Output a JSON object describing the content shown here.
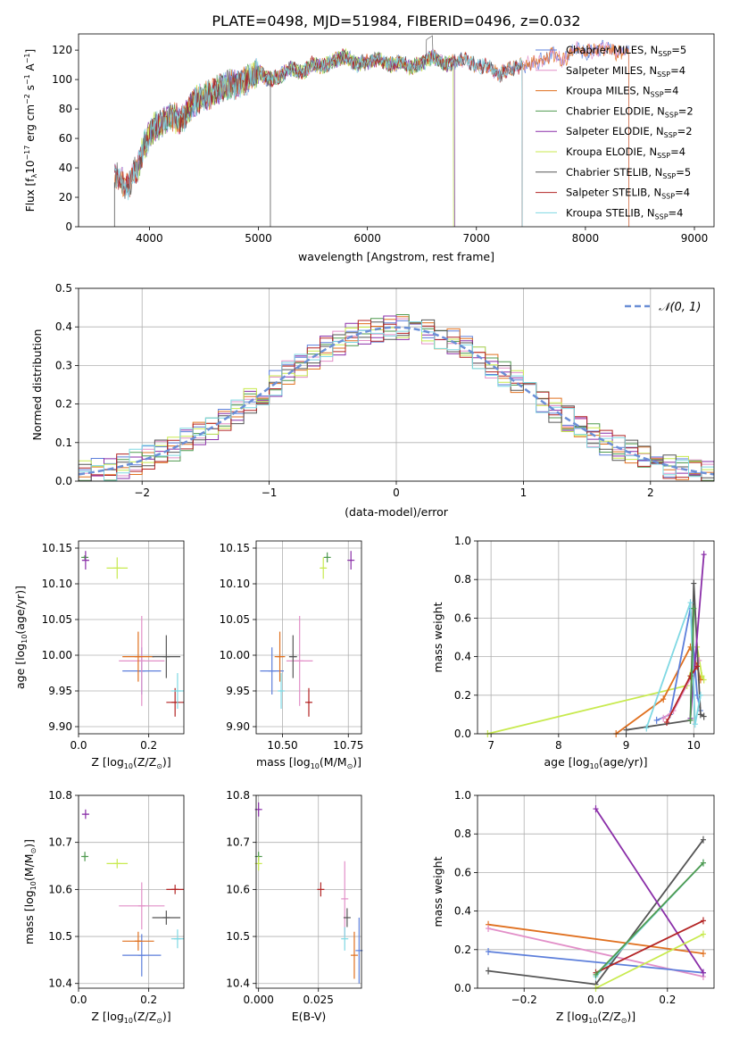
{
  "figure_title": "PLATE=0498, MJD=51984, FIBERID=0496, z=0.032",
  "colors": {
    "MILES": "#5d7fdb",
    "S_MILES": "#e28fc8",
    "K_MILES": "#e0701f",
    "C_ELODIE": "#4f9a4f",
    "S_ELODIE": "#8a2ea8",
    "K_ELODIE": "#c8ea4f",
    "C_STELIB": "#555555",
    "S_STELIB": "#b32424",
    "K_STELIB": "#7fd8e3",
    "normal": "#6b8fd6"
  },
  "chart_data": [
    {
      "id": "spectrum",
      "type": "line",
      "xlabel": "wavelength [Angstrom, rest frame]",
      "ylabel": "Flux [f",
      "ylabel_sub": "λ",
      "ylabel_rest": "10",
      "ylabel_exp": "−17",
      "ylabel_units": " erg cm",
      "ylabel_units_exp": "−2",
      "ylabel_units2": " s",
      "ylabel_units2_exp": "−1",
      "ylabel_units3": " A",
      "ylabel_units3_exp": "−1",
      "ylabel_end": "]",
      "xlim": [
        3350,
        9180
      ],
      "ylim": [
        0,
        131
      ],
      "xticks": [
        4000,
        5000,
        6000,
        7000,
        8000,
        9000
      ],
      "yticks": [
        0,
        20,
        40,
        60,
        80,
        100,
        120
      ],
      "spectrum_anchor_x": [
        3670,
        3700,
        3800,
        3900,
        3950,
        4000,
        4050,
        4100,
        4200,
        4300,
        4400,
        4500,
        4600,
        4700,
        4800,
        4900,
        5000,
        5100,
        5200,
        5300,
        5400,
        5500,
        5600,
        5700,
        5800,
        5900,
        6000,
        6100,
        6200,
        6300,
        6400,
        6500,
        6600,
        6700,
        6800,
        6900,
        7000,
        7100,
        7200,
        7300,
        7400,
        7500,
        7600,
        7700,
        7800,
        7900,
        8000,
        8100,
        8200,
        8300,
        8400,
        8500,
        8600,
        8700,
        8800,
        8900,
        9000,
        9100
      ],
      "spectrum_anchor_y": [
        32,
        35,
        27,
        42,
        55,
        62,
        68,
        70,
        75,
        72,
        85,
        88,
        92,
        96,
        97,
        100,
        105,
        100,
        102,
        108,
        104,
        111,
        109,
        113,
        116,
        110,
        112,
        114,
        110,
        112,
        108,
        111,
        116,
        110,
        112,
        114,
        109,
        110,
        103,
        107,
        109,
        111,
        113,
        118,
        112,
        121,
        118,
        120,
        122,
        117,
        121,
        124,
        118,
        119,
        121,
        120,
        118,
        119
      ],
      "legend": [
        {
          "label": "Chabrier MILES, N",
          "sub": "SSP",
          "val": "=5",
          "color_key": "MILES"
        },
        {
          "label": "Salpeter MILES, N",
          "sub": "SSP",
          "val": "=4",
          "color_key": "S_MILES"
        },
        {
          "label": "Kroupa MILES, N",
          "sub": "SSP",
          "val": "=4",
          "color_key": "K_MILES"
        },
        {
          "label": "Chabrier ELODIE, N",
          "sub": "SSP",
          "val": "=2",
          "color_key": "C_ELODIE"
        },
        {
          "label": "Salpeter ELODIE, N",
          "sub": "SSP",
          "val": "=2",
          "color_key": "S_ELODIE"
        },
        {
          "label": "Kroupa ELODIE, N",
          "sub": "SSP",
          "val": "=4",
          "color_key": "K_ELODIE"
        },
        {
          "label": "Chabrier STELIB, N",
          "sub": "SSP",
          "val": "=5",
          "color_key": "C_STELIB"
        },
        {
          "label": "Salpeter STELIB, N",
          "sub": "SSP",
          "val": "=4",
          "color_key": "S_STELIB"
        },
        {
          "label": "Kroupa STELIB, N",
          "sub": "SSP",
          "val": "=4",
          "color_key": "K_STELIB"
        }
      ]
    },
    {
      "id": "residuals",
      "type": "line",
      "xlabel": "(data-model)/error",
      "ylabel": "Normed distribution",
      "xlim": [
        -2.5,
        2.5
      ],
      "ylim": [
        0,
        0.5
      ],
      "xticks": [
        -2,
        -1,
        0,
        1,
        2
      ],
      "xtick_labels": [
        "−2",
        "−1",
        "0",
        "1",
        "2"
      ],
      "yticks": [
        0.0,
        0.1,
        0.2,
        0.3,
        0.4,
        0.5
      ],
      "ytick_labels": [
        "0.0",
        "0.1",
        "0.2",
        "0.3",
        "0.4",
        "0.5"
      ],
      "legend_label": "𝒩(0, 1)",
      "bin_width": 0.1
    },
    {
      "id": "age_vs_Z",
      "type": "scatter",
      "xlabel": "Z [log",
      "xlabel_sub": "10",
      "xlabel_rest": "(Z/Z",
      "xlabel_sub2": "⊙",
      "xlabel_end": ")]",
      "ylabel": "age  [log",
      "ylabel_sub": "10",
      "ylabel_rest": "(age/yr)]",
      "xlim": [
        0,
        0.3
      ],
      "ylim": [
        9.89,
        10.16
      ],
      "xticks": [
        0.0,
        0.2
      ],
      "xtick_labels": [
        "0.0",
        "0.2"
      ],
      "yticks": [
        9.9,
        9.95,
        10.0,
        10.05,
        10.1,
        10.15
      ],
      "ytick_labels": [
        "9.90",
        "9.95",
        "10.00",
        "10.05",
        "10.10",
        "10.15"
      ],
      "points": [
        {
          "c": "MILES",
          "x": 0.18,
          "y": 9.978,
          "xe": 0.055,
          "ye": 0.033
        },
        {
          "c": "S_MILES",
          "x": 0.18,
          "y": 9.992,
          "xe": 0.065,
          "ye": 0.063
        },
        {
          "c": "K_MILES",
          "x": 0.17,
          "y": 9.998,
          "xe": 0.045,
          "ye": 0.035
        },
        {
          "c": "C_ELODIE",
          "x": 0.018,
          "y": 10.137,
          "xe": 0.005,
          "ye": 0.003
        },
        {
          "c": "S_ELODIE",
          "x": 0.02,
          "y": 10.133,
          "xe": 0.01,
          "ye": 0.013
        },
        {
          "c": "K_ELODIE",
          "x": 0.11,
          "y": 10.122,
          "xe": 0.03,
          "ye": 0.015
        },
        {
          "c": "C_STELIB",
          "x": 0.25,
          "y": 9.998,
          "xe": 0.04,
          "ye": 0.03
        },
        {
          "c": "S_STELIB",
          "x": 0.275,
          "y": 9.934,
          "xe": 0.025,
          "ye": 0.02
        },
        {
          "c": "K_STELIB",
          "x": 0.282,
          "y": 9.95,
          "xe": 0.018,
          "ye": 0.025
        }
      ]
    },
    {
      "id": "age_vs_mass",
      "type": "scatter",
      "xlabel": "mass [log",
      "xlabel_sub": "10",
      "xlabel_rest": "(M/M",
      "xlabel_sub2": "⊙",
      "xlabel_end": ")]",
      "xlim": [
        10.4,
        10.8
      ],
      "ylim": [
        9.89,
        10.16
      ],
      "xticks": [
        10.5,
        10.75
      ],
      "xtick_labels": [
        "10.50",
        "10.75"
      ],
      "yticks": [
        9.9,
        9.95,
        10.0,
        10.05,
        10.1,
        10.15
      ],
      "ytick_labels": [
        "9.90",
        "9.95",
        "10.00",
        "10.05",
        "10.10",
        "10.15"
      ],
      "points": [
        {
          "c": "MILES",
          "x": 10.46,
          "y": 9.978,
          "xe": 0.045,
          "ye": 0.033
        },
        {
          "c": "S_MILES",
          "x": 10.565,
          "y": 9.992,
          "xe": 0.05,
          "ye": 0.063
        },
        {
          "c": "K_MILES",
          "x": 10.49,
          "y": 9.998,
          "xe": 0.02,
          "ye": 0.035
        },
        {
          "c": "C_ELODIE",
          "x": 10.67,
          "y": 10.137,
          "xe": 0.005,
          "ye": 0.007
        },
        {
          "c": "S_ELODIE",
          "x": 10.76,
          "y": 10.133,
          "xe": 0.005,
          "ye": 0.013
        },
        {
          "c": "K_ELODIE",
          "x": 10.655,
          "y": 10.122,
          "xe": 0.01,
          "ye": 0.015
        },
        {
          "c": "C_STELIB",
          "x": 10.54,
          "y": 9.998,
          "xe": 0.015,
          "ye": 0.03
        },
        {
          "c": "S_STELIB",
          "x": 10.6,
          "y": 9.934,
          "xe": 0.005,
          "ye": 0.02
        },
        {
          "c": "K_STELIB",
          "x": 10.495,
          "y": 9.95,
          "xe": 0.008,
          "ye": 0.025
        }
      ]
    },
    {
      "id": "weight_vs_age",
      "type": "line",
      "xlabel": "age  [log",
      "xlabel_sub": "10",
      "xlabel_rest": "(age/yr)]",
      "ylabel": "mass weight",
      "xlim": [
        6.8,
        10.3
      ],
      "ylim": [
        0,
        1
      ],
      "xticks": [
        7,
        8,
        9,
        10
      ],
      "xtick_labels": [
        "7",
        "8",
        "9",
        "10"
      ],
      "yticks": [
        0,
        0.2,
        0.4,
        0.6,
        0.8,
        1.0
      ],
      "ytick_labels": [
        "0.0",
        "0.2",
        "0.4",
        "0.6",
        "0.8",
        "1.0"
      ],
      "series": [
        {
          "c": "K_ELODIE",
          "x": [
            6.95,
            9.9,
            10.05,
            10.12,
            10.15
          ],
          "y": [
            0.0,
            0.25,
            0.45,
            0.3,
            0.28
          ]
        },
        {
          "c": "K_MILES",
          "x": [
            8.85,
            9.55,
            9.95,
            10.05,
            10.1
          ],
          "y": [
            0.0,
            0.18,
            0.45,
            0.35,
            0.28
          ]
        },
        {
          "c": "MILES",
          "x": [
            9.45,
            9.65,
            9.95,
            10.05,
            10.1
          ],
          "y": [
            0.07,
            0.1,
            0.65,
            0.2,
            0.12
          ]
        },
        {
          "c": "S_MILES",
          "x": [
            9.55,
            9.7,
            9.97,
            10.08
          ],
          "y": [
            0.08,
            0.12,
            0.3,
            0.38
          ]
        },
        {
          "c": "C_STELIB",
          "x": [
            9.0,
            9.95,
            10.0,
            10.1,
            10.15
          ],
          "y": [
            0.02,
            0.07,
            0.78,
            0.1,
            0.09
          ]
        },
        {
          "c": "S_ELODIE",
          "x": [
            9.95,
            10.15
          ],
          "y": [
            0.08,
            0.93
          ]
        },
        {
          "c": "K_STELIB",
          "x": [
            9.3,
            9.95,
            10.02,
            10.1
          ],
          "y": [
            0.03,
            0.68,
            0.05,
            0.2
          ]
        },
        {
          "c": "S_STELIB",
          "x": [
            9.6,
            9.95,
            10.05
          ],
          "y": [
            0.06,
            0.3,
            0.35
          ]
        },
        {
          "c": "C_ELODIE",
          "x": [
            9.95,
            10.0
          ],
          "y": [
            0.07,
            0.65
          ]
        }
      ]
    },
    {
      "id": "mass_vs_Z",
      "type": "scatter",
      "xlabel": "Z [log",
      "xlabel_sub": "10",
      "xlabel_rest": "(Z/Z",
      "xlabel_sub2": "⊙",
      "xlabel_end": ")]",
      "ylabel": "mass [log",
      "ylabel_sub": "10",
      "ylabel_rest": "(M/M",
      "ylabel_sub2": "⊙",
      "ylabel_end": ")]",
      "xlim": [
        0,
        0.3
      ],
      "ylim": [
        10.39,
        10.8
      ],
      "xticks": [
        0.0,
        0.2
      ],
      "xtick_labels": [
        "0.0",
        "0.2"
      ],
      "yticks": [
        10.4,
        10.5,
        10.6,
        10.7,
        10.8
      ],
      "ytick_labels": [
        "10.4",
        "10.5",
        "10.6",
        "10.7",
        "10.8"
      ],
      "points": [
        {
          "c": "MILES",
          "x": 0.18,
          "y": 10.46,
          "xe": 0.055,
          "ye": 0.045
        },
        {
          "c": "S_MILES",
          "x": 0.18,
          "y": 10.565,
          "xe": 0.065,
          "ye": 0.05
        },
        {
          "c": "K_MILES",
          "x": 0.17,
          "y": 10.49,
          "xe": 0.045,
          "ye": 0.02
        },
        {
          "c": "C_ELODIE",
          "x": 0.018,
          "y": 10.67,
          "xe": 0.005,
          "ye": 0.01
        },
        {
          "c": "S_ELODIE",
          "x": 0.02,
          "y": 10.76,
          "xe": 0.01,
          "ye": 0.01
        },
        {
          "c": "K_ELODIE",
          "x": 0.11,
          "y": 10.655,
          "xe": 0.03,
          "ye": 0.01
        },
        {
          "c": "C_STELIB",
          "x": 0.25,
          "y": 10.54,
          "xe": 0.04,
          "ye": 0.015
        },
        {
          "c": "S_STELIB",
          "x": 0.275,
          "y": 10.6,
          "xe": 0.025,
          "ye": 0.01
        },
        {
          "c": "K_STELIB",
          "x": 0.282,
          "y": 10.495,
          "xe": 0.018,
          "ye": 0.02
        }
      ]
    },
    {
      "id": "mass_vs_ebv",
      "type": "scatter",
      "xlabel": "E(B-V)",
      "xlim": [
        -0.001,
        0.043
      ],
      "ylim": [
        10.39,
        10.8
      ],
      "xticks": [
        0.0,
        0.025
      ],
      "xtick_labels": [
        "0.000",
        "0.025"
      ],
      "yticks": [
        10.4,
        10.5,
        10.6,
        10.7,
        10.8
      ],
      "ytick_labels": [
        "10.4",
        "10.5",
        "10.6",
        "10.7",
        "10.8"
      ],
      "points": [
        {
          "c": "MILES",
          "x": 0.042,
          "y": 10.47,
          "xe": 0,
          "ye": 0.07
        },
        {
          "c": "S_MILES",
          "x": 0.036,
          "y": 10.58,
          "xe": 0,
          "ye": 0.08
        },
        {
          "c": "K_MILES",
          "x": 0.04,
          "y": 10.46,
          "xe": 0,
          "ye": 0.05
        },
        {
          "c": "C_ELODIE",
          "x": 0.0,
          "y": 10.67,
          "xe": 0,
          "ye": 0.01
        },
        {
          "c": "S_ELODIE",
          "x": 0.0,
          "y": 10.77,
          "xe": 0,
          "ye": 0.015
        },
        {
          "c": "K_ELODIE",
          "x": 0.0,
          "y": 10.655,
          "xe": 0,
          "ye": 0.015
        },
        {
          "c": "C_STELIB",
          "x": 0.037,
          "y": 10.54,
          "xe": 0,
          "ye": 0.02
        },
        {
          "c": "S_STELIB",
          "x": 0.026,
          "y": 10.6,
          "xe": 0,
          "ye": 0.015
        },
        {
          "c": "K_STELIB",
          "x": 0.036,
          "y": 10.495,
          "xe": 0,
          "ye": 0.025
        }
      ]
    },
    {
      "id": "weight_vs_Z",
      "type": "line",
      "xlabel": "Z [log",
      "xlabel_sub": "10",
      "xlabel_rest": "(Z/Z",
      "xlabel_sub2": "⊙",
      "xlabel_end": ")]",
      "ylabel": "mass weight",
      "xlim": [
        -0.33,
        0.33
      ],
      "ylim": [
        0,
        1
      ],
      "xticks": [
        -0.2,
        0.0,
        0.2
      ],
      "xtick_labels": [
        "−0.2",
        "0.0",
        "0.2"
      ],
      "yticks": [
        0,
        0.2,
        0.4,
        0.6,
        0.8,
        1.0
      ],
      "ytick_labels": [
        "0.0",
        "0.2",
        "0.4",
        "0.6",
        "0.8",
        "1.0"
      ],
      "series": [
        {
          "c": "K_MILES",
          "x": [
            -0.3,
            0.3
          ],
          "y": [
            0.33,
            0.18
          ]
        },
        {
          "c": "S_MILES",
          "x": [
            -0.3,
            0.3
          ],
          "y": [
            0.31,
            0.06
          ]
        },
        {
          "c": "MILES",
          "x": [
            -0.3,
            0.3
          ],
          "y": [
            0.19,
            0.08
          ]
        },
        {
          "c": "C_STELIB",
          "x": [
            -0.3,
            0.0,
            0.3
          ],
          "y": [
            0.09,
            0.02,
            0.77
          ]
        },
        {
          "c": "S_ELODIE",
          "x": [
            0.0,
            0.3
          ],
          "y": [
            0.93,
            0.08
          ]
        },
        {
          "c": "K_ELODIE",
          "x": [
            0.0,
            0.3
          ],
          "y": [
            0.0,
            0.28
          ]
        },
        {
          "c": "K_STELIB",
          "x": [
            0.0,
            0.3
          ],
          "y": [
            0.06,
            0.65
          ]
        },
        {
          "c": "S_STELIB",
          "x": [
            0.0,
            0.3
          ],
          "y": [
            0.08,
            0.35
          ]
        },
        {
          "c": "C_ELODIE",
          "x": [
            0.0,
            0.3
          ],
          "y": [
            0.07,
            0.65
          ]
        }
      ]
    }
  ]
}
